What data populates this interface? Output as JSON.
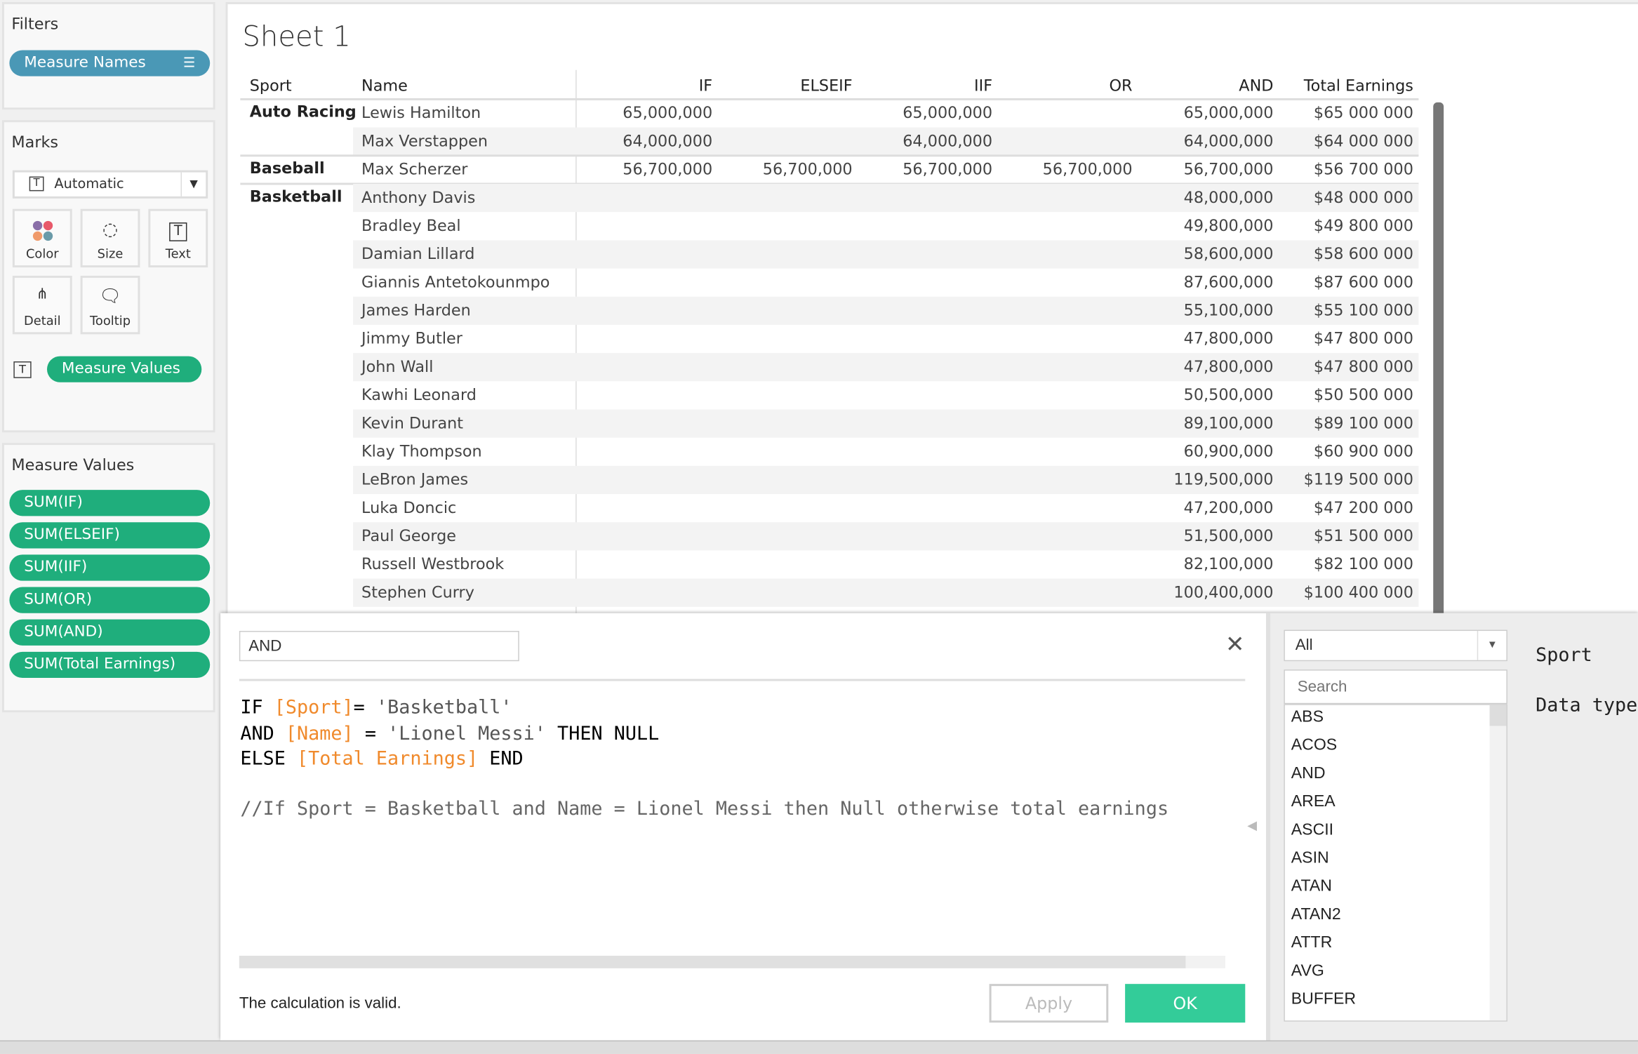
{
  "filters": {
    "title": "Filters",
    "pill": "Measure Names"
  },
  "marks": {
    "title": "Marks",
    "type": "Automatic",
    "buttons": [
      "Color",
      "Size",
      "Text",
      "Detail",
      "Tooltip"
    ],
    "text_pill": "Measure Values"
  },
  "measure_values": {
    "title": "Measure Values",
    "items": [
      "SUM(IF)",
      "SUM(ELSEIF)",
      "SUM(IIF)",
      "SUM(OR)",
      "SUM(AND)",
      "SUM(Total Earnings)"
    ]
  },
  "sheet": {
    "title": "Sheet 1",
    "columns": [
      "Sport",
      "Name",
      "IF",
      "ELSEIF",
      "IIF",
      "OR",
      "AND",
      "Total Earnings"
    ],
    "groups": [
      {
        "sport": "Auto Racing",
        "rows": [
          [
            "Lewis Hamilton",
            "65,000,000",
            "",
            "65,000,000",
            "",
            "65,000,000",
            "$65 000 000"
          ],
          [
            "Max Verstappen",
            "64,000,000",
            "",
            "64,000,000",
            "",
            "64,000,000",
            "$64 000 000"
          ]
        ]
      },
      {
        "sport": "Baseball",
        "rows": [
          [
            "Max Scherzer",
            "56,700,000",
            "56,700,000",
            "56,700,000",
            "56,700,000",
            "56,700,000",
            "$56 700 000"
          ]
        ]
      },
      {
        "sport": "Basketball",
        "rows": [
          [
            "Anthony Davis",
            "",
            "",
            "",
            "",
            "48,000,000",
            "$48 000 000"
          ],
          [
            "Bradley Beal",
            "",
            "",
            "",
            "",
            "49,800,000",
            "$49 800 000"
          ],
          [
            "Damian Lillard",
            "",
            "",
            "",
            "",
            "58,600,000",
            "$58 600 000"
          ],
          [
            "Giannis Antetokounmpo",
            "",
            "",
            "",
            "",
            "87,600,000",
            "$87 600 000"
          ],
          [
            "James Harden",
            "",
            "",
            "",
            "",
            "55,100,000",
            "$55 100 000"
          ],
          [
            "Jimmy Butler",
            "",
            "",
            "",
            "",
            "47,800,000",
            "$47 800 000"
          ],
          [
            "John Wall",
            "",
            "",
            "",
            "",
            "47,800,000",
            "$47 800 000"
          ],
          [
            "Kawhi Leonard",
            "",
            "",
            "",
            "",
            "50,500,000",
            "$50 500 000"
          ],
          [
            "Kevin Durant",
            "",
            "",
            "",
            "",
            "89,100,000",
            "$89 100 000"
          ],
          [
            "Klay Thompson",
            "",
            "",
            "",
            "",
            "60,900,000",
            "$60 900 000"
          ],
          [
            "LeBron James",
            "",
            "",
            "",
            "",
            "119,500,000",
            "$119 500 000"
          ],
          [
            "Luka Doncic",
            "",
            "",
            "",
            "",
            "47,200,000",
            "$47 200 000"
          ],
          [
            "Paul George",
            "",
            "",
            "",
            "",
            "51,500,000",
            "$51 500 000"
          ],
          [
            "Russell Westbrook",
            "",
            "",
            "",
            "",
            "82,100,000",
            "$82 100 000"
          ],
          [
            "Stephen Curry",
            "",
            "",
            "",
            "",
            "100,400,000",
            "$100 400 000"
          ]
        ]
      }
    ]
  },
  "calc": {
    "name": "AND",
    "line1": {
      "kw": "IF ",
      "f": "[Sport]",
      "op": "= ",
      "s": "'Basketball'"
    },
    "line2": {
      "kw": "AND ",
      "f": "[Name]",
      "op": " = ",
      "s": "'Lionel Messi'",
      "kw2": " THEN NULL"
    },
    "line3": {
      "kw": "ELSE ",
      "f": "[Total Earnings]",
      "kw2": " END"
    },
    "comment": "//If Sport = Basketball and Name = Lionel Messi then Null otherwise total earnings",
    "status": "The calculation is valid.",
    "apply": "Apply",
    "ok": "OK"
  },
  "functions": {
    "category": "All",
    "search_placeholder": "Search",
    "list": [
      "ABS",
      "ACOS",
      "AND",
      "AREA",
      "ASCII",
      "ASIN",
      "ATAN",
      "ATAN2",
      "ATTR",
      "AVG",
      "BUFFER"
    ],
    "detail_title": "Sport",
    "detail_type": "Data type"
  },
  "colors": {
    "filter_pill": "#4a98b6",
    "measure_pill": "#1fae7c",
    "ok": "#33cc99",
    "field": "#f08a2c"
  }
}
